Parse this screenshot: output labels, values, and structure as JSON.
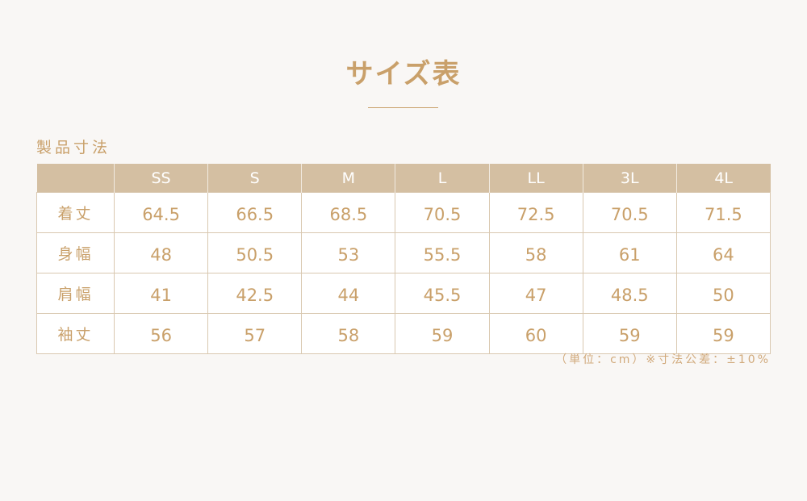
{
  "title": "サイズ表",
  "subtitle": "製品寸法",
  "table": {
    "headers": [
      "",
      "SS",
      "S",
      "M",
      "L",
      "LL",
      "3L",
      "4L"
    ],
    "rows": [
      {
        "label": "着丈",
        "values": [
          "64.5",
          "66.5",
          "68.5",
          "70.5",
          "72.5",
          "70.5",
          "71.5"
        ]
      },
      {
        "label": "身幅",
        "values": [
          "48",
          "50.5",
          "53",
          "55.5",
          "58",
          "61",
          "64"
        ]
      },
      {
        "label": "肩幅",
        "values": [
          "41",
          "42.5",
          "44",
          "45.5",
          "47",
          "48.5",
          "50"
        ]
      },
      {
        "label": "袖丈",
        "values": [
          "56",
          "57",
          "58",
          "59",
          "60",
          "59",
          "59"
        ]
      }
    ]
  },
  "note": "（単位：cm）※寸法公差：±10%",
  "colors": {
    "accent": "#c9a06a",
    "header_bg": "#d4bfa2",
    "background": "#f9f7f5"
  }
}
